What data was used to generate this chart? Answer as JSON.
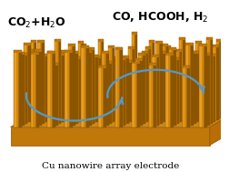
{
  "bg_color": "#ffffff",
  "text_left": "CO$_2$+H$_2$O",
  "text_right": "CO, HCOOH, H$_2$",
  "caption": "Cu nanowire array electrode",
  "arrow_color": "#5599cc",
  "base_top_color": "#d4870a",
  "base_side_color": "#b86e05",
  "base_front_color": "#c07808",
  "wire_body_color": "#d4870a",
  "wire_dark_color": "#8b5500",
  "wire_light_color": "#f0a830",
  "wire_top_color": "#c07808"
}
